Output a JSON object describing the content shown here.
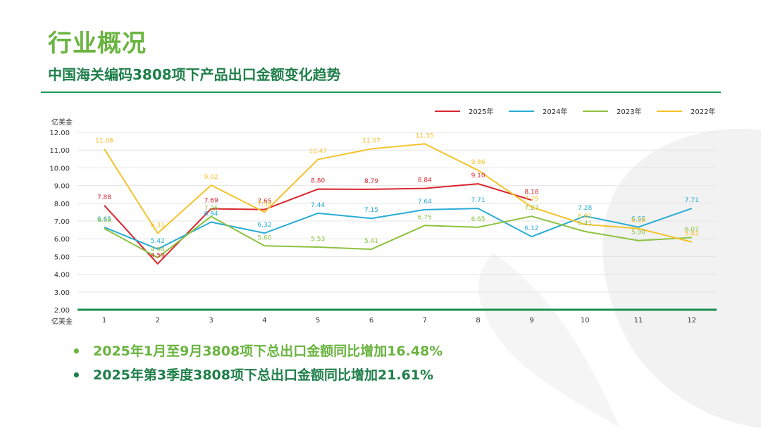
{
  "header": {
    "title": "行业概况",
    "subtitle": "中国海关编码3808项下产品出口金额变化趋势"
  },
  "colors": {
    "title": "#6ab440",
    "subtitle": "#1f7f4a",
    "rule": "#1a9a56",
    "axis": "#1a8f4e"
  },
  "chart_data": {
    "type": "line",
    "ylabel": "亿美金",
    "xlabel": "亿美金",
    "ylim": [
      2,
      12
    ],
    "yticks": [
      "2.00",
      "3.00",
      "4.00",
      "5.00",
      "6.00",
      "7.00",
      "8.00",
      "9.00",
      "10.00",
      "11.00",
      "12.00"
    ],
    "categories": [
      "1",
      "2",
      "3",
      "4",
      "5",
      "6",
      "7",
      "8",
      "9",
      "10",
      "11",
      "12"
    ],
    "grid": true,
    "legend_position": "top-right",
    "series": [
      {
        "name": "2025年",
        "color": "#d8262e",
        "values": [
          7.88,
          4.59,
          7.69,
          7.65,
          8.8,
          8.79,
          8.84,
          9.1,
          8.18,
          null,
          null,
          null
        ]
      },
      {
        "name": "2024年",
        "color": "#29acd6",
        "values": [
          6.65,
          5.42,
          6.94,
          6.32,
          7.44,
          7.15,
          7.64,
          7.71,
          6.12,
          7.28,
          6.66,
          7.71
        ]
      },
      {
        "name": "2023年",
        "color": "#8dc23f",
        "values": [
          6.58,
          4.94,
          7.26,
          5.6,
          5.53,
          5.41,
          6.75,
          6.65,
          7.27,
          6.41,
          5.9,
          6.07
        ]
      },
      {
        "name": "2022年",
        "color": "#f4c32a",
        "values": [
          11.06,
          6.31,
          9.02,
          7.5,
          10.47,
          11.07,
          11.35,
          9.86,
          7.79,
          6.81,
          6.58,
          5.82
        ]
      }
    ]
  },
  "bullets": [
    "2025年1月至9月3808项下总出口金额同比增加16.48%",
    "2025年第3季度3808项下总出口金额同比增加21.61%"
  ],
  "bullet_marker": "•"
}
